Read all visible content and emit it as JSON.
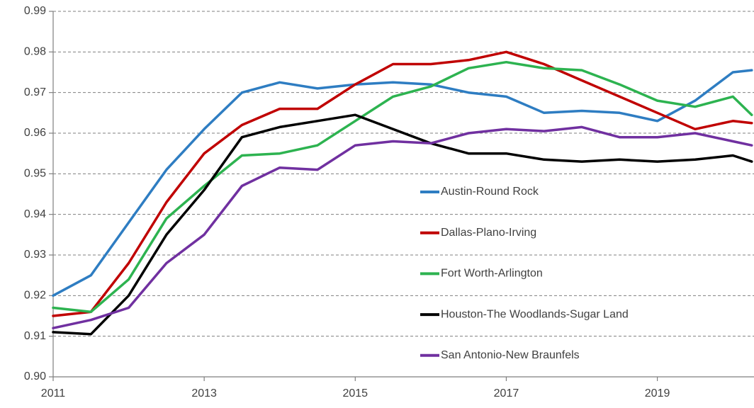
{
  "chart_data": {
    "type": "line",
    "x": [
      2011,
      2011.5,
      2012,
      2012.5,
      2013,
      2013.5,
      2014,
      2014.5,
      2015,
      2015.5,
      2016,
      2016.5,
      2017,
      2017.5,
      2018,
      2018.5,
      2019,
      2019.5,
      2020,
      2020.25
    ],
    "series": [
      {
        "name": "Austin-Round Rock",
        "color": "#2e7dc2",
        "values": [
          0.92,
          0.925,
          0.938,
          0.951,
          0.961,
          0.97,
          0.9725,
          0.971,
          0.972,
          0.9725,
          0.972,
          0.97,
          0.969,
          0.965,
          0.9655,
          0.965,
          0.963,
          0.968,
          0.975,
          0.9755
        ]
      },
      {
        "name": "Dallas-Plano-Irving",
        "color": "#c00000",
        "values": [
          0.915,
          0.916,
          0.928,
          0.943,
          0.955,
          0.962,
          0.966,
          0.966,
          0.972,
          0.977,
          0.977,
          0.978,
          0.98,
          0.977,
          0.973,
          0.969,
          0.965,
          0.961,
          0.963,
          0.9625
        ]
      },
      {
        "name": "Fort Worth-Arlington",
        "color": "#2db350",
        "values": [
          0.917,
          0.916,
          0.924,
          0.939,
          0.947,
          0.9545,
          0.955,
          0.957,
          0.963,
          0.969,
          0.9715,
          0.976,
          0.9775,
          0.976,
          0.9755,
          0.972,
          0.968,
          0.9665,
          0.969,
          0.9645
        ]
      },
      {
        "name": "Houston-The Woodlands-Sugar Land",
        "color": "#000000",
        "values": [
          0.911,
          0.9105,
          0.92,
          0.935,
          0.946,
          0.959,
          0.9615,
          0.963,
          0.9645,
          0.961,
          0.9575,
          0.955,
          0.955,
          0.9535,
          0.953,
          0.9535,
          0.953,
          0.9535,
          0.9545,
          0.953
        ]
      },
      {
        "name": "San Antonio-New Braunfels",
        "color": "#7030a0",
        "values": [
          0.912,
          0.914,
          0.917,
          0.928,
          0.935,
          0.947,
          0.9515,
          0.951,
          0.957,
          0.958,
          0.9575,
          0.96,
          0.961,
          0.9605,
          0.9615,
          0.959,
          0.959,
          0.96,
          0.958,
          0.957
        ]
      }
    ],
    "xlim": [
      2011,
      2020.28
    ],
    "xticks": [
      2011,
      2013,
      2015,
      2017,
      2019
    ],
    "ylim": [
      0.9,
      0.99
    ],
    "yticks": [
      {
        "value": 0.9,
        "label": "0.90"
      },
      0.91,
      0.92,
      0.93,
      0.94,
      0.95,
      0.96,
      0.97,
      0.98,
      0.99
    ],
    "grid": true
  }
}
